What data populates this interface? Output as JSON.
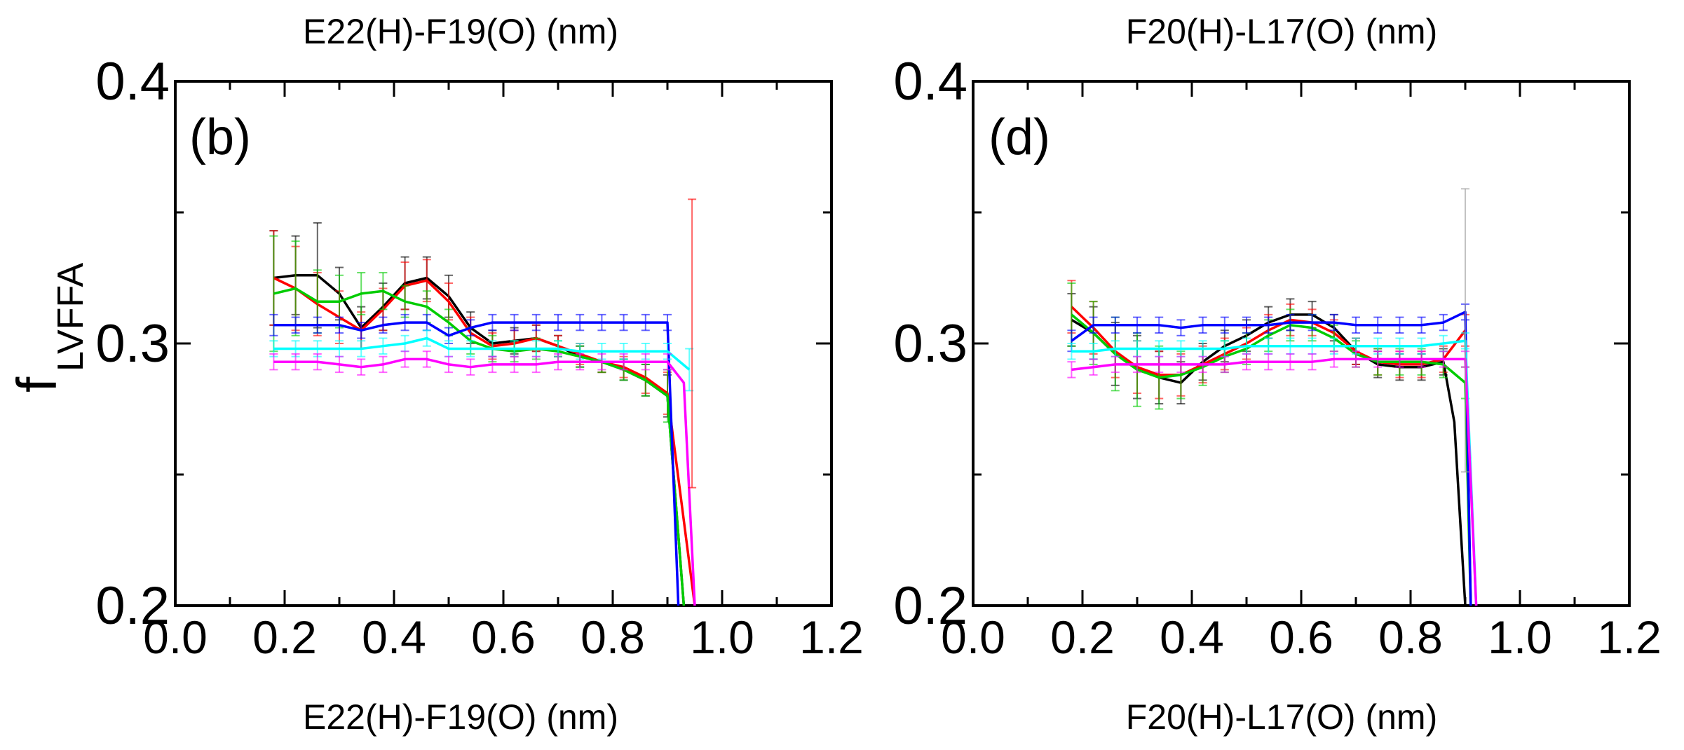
{
  "colors": {
    "black": "#000000",
    "red": "#ff0000",
    "green": "#00cc00",
    "blue": "#0000ff",
    "cyan": "#00ffff",
    "magenta": "#ff00ff"
  },
  "chart_data": [
    {
      "type": "line",
      "panel_label": "(b)",
      "top_label": "E22(H)-F19(O) (nm)",
      "xlabel": "E22(H)-F19(O) (nm)",
      "ylabel": "f",
      "ylabel_sub": "LVFFA",
      "xlim": [
        0.0,
        1.2
      ],
      "ylim": [
        0.2,
        0.4
      ],
      "x_ticks": [
        "0.0",
        "0.2",
        "0.4",
        "0.6",
        "0.8",
        "1.0",
        "1.2"
      ],
      "y_ticks": [
        "0.2",
        "0.3",
        "0.4"
      ],
      "grid": false,
      "series": [
        {
          "color": "black",
          "x": [
            0.18,
            0.22,
            0.26,
            0.3,
            0.34,
            0.38,
            0.42,
            0.46,
            0.5,
            0.54,
            0.58,
            0.62,
            0.66,
            0.7,
            0.74,
            0.78,
            0.82,
            0.86,
            0.9,
            0.93
          ],
          "y": [
            0.325,
            0.326,
            0.326,
            0.319,
            0.306,
            0.314,
            0.323,
            0.325,
            0.318,
            0.306,
            0.3,
            0.301,
            0.302,
            0.299,
            0.295,
            0.293,
            0.29,
            0.286,
            0.28,
            0.2
          ],
          "err": [
            0.018,
            0.015,
            0.02,
            0.01,
            0.008,
            0.009,
            0.01,
            0.008,
            0.008,
            0.006,
            0.005,
            0.005,
            0.005,
            0.004,
            0.004,
            0.004,
            0.004,
            0.006,
            0.008,
            0.0
          ]
        },
        {
          "color": "red",
          "x": [
            0.18,
            0.22,
            0.26,
            0.3,
            0.34,
            0.38,
            0.42,
            0.46,
            0.5,
            0.54,
            0.58,
            0.62,
            0.66,
            0.7,
            0.74,
            0.78,
            0.82,
            0.86,
            0.9,
            0.95
          ],
          "y": [
            0.325,
            0.321,
            0.315,
            0.31,
            0.305,
            0.313,
            0.322,
            0.324,
            0.316,
            0.304,
            0.299,
            0.3,
            0.302,
            0.299,
            0.296,
            0.293,
            0.291,
            0.287,
            0.281,
            0.2
          ],
          "err": [
            0.018,
            0.016,
            0.012,
            0.01,
            0.007,
            0.008,
            0.009,
            0.008,
            0.007,
            0.006,
            0.005,
            0.005,
            0.005,
            0.004,
            0.004,
            0.004,
            0.004,
            0.006,
            0.008,
            0.0
          ]
        },
        {
          "color": "green",
          "x": [
            0.18,
            0.22,
            0.26,
            0.3,
            0.34,
            0.38,
            0.42,
            0.46,
            0.5,
            0.54,
            0.58,
            0.62,
            0.66,
            0.7,
            0.74,
            0.78,
            0.82,
            0.86,
            0.9,
            0.93
          ],
          "y": [
            0.319,
            0.321,
            0.316,
            0.316,
            0.319,
            0.32,
            0.316,
            0.314,
            0.308,
            0.301,
            0.298,
            0.297,
            0.298,
            0.297,
            0.295,
            0.293,
            0.29,
            0.286,
            0.28,
            0.2
          ],
          "err": [
            0.022,
            0.018,
            0.012,
            0.01,
            0.008,
            0.007,
            0.006,
            0.006,
            0.005,
            0.005,
            0.005,
            0.004,
            0.004,
            0.004,
            0.004,
            0.004,
            0.004,
            0.006,
            0.01,
            0.0
          ]
        },
        {
          "color": "blue",
          "x": [
            0.18,
            0.22,
            0.26,
            0.3,
            0.34,
            0.38,
            0.42,
            0.46,
            0.5,
            0.54,
            0.58,
            0.62,
            0.66,
            0.7,
            0.74,
            0.78,
            0.82,
            0.86,
            0.9,
            0.92
          ],
          "y": [
            0.307,
            0.307,
            0.307,
            0.307,
            0.305,
            0.307,
            0.308,
            0.308,
            0.303,
            0.306,
            0.308,
            0.308,
            0.308,
            0.308,
            0.308,
            0.308,
            0.308,
            0.308,
            0.308,
            0.2
          ],
          "err": [
            0.004,
            0.003,
            0.003,
            0.003,
            0.003,
            0.003,
            0.003,
            0.003,
            0.003,
            0.003,
            0.003,
            0.003,
            0.003,
            0.003,
            0.003,
            0.003,
            0.003,
            0.003,
            0.003,
            0.0
          ]
        },
        {
          "color": "cyan",
          "x": [
            0.18,
            0.22,
            0.26,
            0.3,
            0.34,
            0.38,
            0.42,
            0.46,
            0.5,
            0.54,
            0.58,
            0.62,
            0.66,
            0.7,
            0.74,
            0.78,
            0.82,
            0.86,
            0.9,
            0.94
          ],
          "y": [
            0.298,
            0.298,
            0.298,
            0.298,
            0.298,
            0.299,
            0.3,
            0.302,
            0.298,
            0.298,
            0.298,
            0.298,
            0.298,
            0.298,
            0.297,
            0.297,
            0.297,
            0.297,
            0.297,
            0.29
          ],
          "err": [
            0.003,
            0.003,
            0.003,
            0.003,
            0.003,
            0.003,
            0.003,
            0.003,
            0.003,
            0.003,
            0.003,
            0.003,
            0.003,
            0.003,
            0.003,
            0.003,
            0.003,
            0.003,
            0.003,
            0.008
          ]
        },
        {
          "color": "magenta",
          "x": [
            0.18,
            0.22,
            0.26,
            0.3,
            0.34,
            0.38,
            0.42,
            0.46,
            0.5,
            0.54,
            0.58,
            0.62,
            0.66,
            0.7,
            0.74,
            0.78,
            0.82,
            0.86,
            0.9,
            0.93,
            0.95
          ],
          "y": [
            0.293,
            0.293,
            0.293,
            0.292,
            0.291,
            0.292,
            0.294,
            0.294,
            0.292,
            0.291,
            0.292,
            0.292,
            0.292,
            0.293,
            0.293,
            0.293,
            0.293,
            0.293,
            0.293,
            0.285,
            0.2
          ],
          "err": [
            0.003,
            0.003,
            0.003,
            0.003,
            0.003,
            0.003,
            0.003,
            0.003,
            0.003,
            0.003,
            0.003,
            0.003,
            0.003,
            0.003,
            0.003,
            0.003,
            0.003,
            0.003,
            0.003,
            0.0,
            0.0
          ]
        }
      ],
      "outlier_errorbars": [
        {
          "color": "red",
          "x": 0.945,
          "y": 0.3,
          "err": 0.055
        }
      ]
    },
    {
      "type": "line",
      "panel_label": "(d)",
      "top_label": "F20(H)-L17(O) (nm)",
      "xlabel": "F20(H)-L17(O) (nm)",
      "xlim": [
        0.0,
        1.2
      ],
      "ylim": [
        0.2,
        0.4
      ],
      "x_ticks": [
        "0.0",
        "0.2",
        "0.4",
        "0.6",
        "0.8",
        "1.0",
        "1.2"
      ],
      "y_ticks": [
        "0.2",
        "0.3",
        "0.4"
      ],
      "grid": false,
      "series": [
        {
          "color": "black",
          "x": [
            0.18,
            0.22,
            0.26,
            0.3,
            0.34,
            0.38,
            0.42,
            0.46,
            0.5,
            0.54,
            0.58,
            0.62,
            0.66,
            0.7,
            0.74,
            0.78,
            0.82,
            0.86,
            0.88,
            0.9
          ],
          "y": [
            0.309,
            0.304,
            0.296,
            0.291,
            0.287,
            0.285,
            0.293,
            0.299,
            0.303,
            0.308,
            0.311,
            0.311,
            0.306,
            0.297,
            0.292,
            0.291,
            0.291,
            0.293,
            0.27,
            0.2
          ],
          "err": [
            0.01,
            0.01,
            0.012,
            0.012,
            0.01,
            0.008,
            0.007,
            0.006,
            0.006,
            0.006,
            0.006,
            0.005,
            0.005,
            0.005,
            0.005,
            0.005,
            0.005,
            0.005,
            0.0,
            0.0
          ]
        },
        {
          "color": "red",
          "x": [
            0.18,
            0.22,
            0.26,
            0.3,
            0.34,
            0.38,
            0.42,
            0.46,
            0.5,
            0.54,
            0.58,
            0.62,
            0.66,
            0.7,
            0.74,
            0.78,
            0.82,
            0.86,
            0.9,
            0.91
          ],
          "y": [
            0.314,
            0.306,
            0.297,
            0.291,
            0.288,
            0.288,
            0.292,
            0.296,
            0.3,
            0.305,
            0.309,
            0.308,
            0.304,
            0.297,
            0.293,
            0.292,
            0.292,
            0.294,
            0.305,
            0.2
          ],
          "err": [
            0.01,
            0.01,
            0.01,
            0.01,
            0.009,
            0.008,
            0.007,
            0.006,
            0.006,
            0.006,
            0.006,
            0.005,
            0.005,
            0.005,
            0.005,
            0.005,
            0.005,
            0.005,
            0.006,
            0.0
          ]
        },
        {
          "color": "green",
          "x": [
            0.18,
            0.22,
            0.26,
            0.3,
            0.34,
            0.38,
            0.42,
            0.46,
            0.5,
            0.54,
            0.58,
            0.62,
            0.66,
            0.7,
            0.74,
            0.78,
            0.82,
            0.86,
            0.9,
            0.91
          ],
          "y": [
            0.311,
            0.304,
            0.296,
            0.29,
            0.287,
            0.288,
            0.291,
            0.295,
            0.298,
            0.303,
            0.307,
            0.306,
            0.302,
            0.296,
            0.293,
            0.293,
            0.293,
            0.292,
            0.285,
            0.2
          ],
          "err": [
            0.012,
            0.012,
            0.014,
            0.014,
            0.012,
            0.009,
            0.007,
            0.006,
            0.006,
            0.006,
            0.006,
            0.005,
            0.005,
            0.005,
            0.005,
            0.005,
            0.005,
            0.005,
            0.006,
            0.0
          ]
        },
        {
          "color": "blue",
          "x": [
            0.18,
            0.22,
            0.26,
            0.3,
            0.34,
            0.38,
            0.42,
            0.46,
            0.5,
            0.54,
            0.58,
            0.62,
            0.66,
            0.7,
            0.74,
            0.78,
            0.82,
            0.86,
            0.9,
            0.91
          ],
          "y": [
            0.301,
            0.307,
            0.307,
            0.307,
            0.307,
            0.306,
            0.307,
            0.307,
            0.307,
            0.307,
            0.308,
            0.308,
            0.308,
            0.307,
            0.307,
            0.307,
            0.307,
            0.308,
            0.312,
            0.2
          ],
          "err": [
            0.004,
            0.003,
            0.003,
            0.003,
            0.003,
            0.003,
            0.003,
            0.003,
            0.003,
            0.003,
            0.003,
            0.003,
            0.003,
            0.003,
            0.003,
            0.003,
            0.003,
            0.003,
            0.003,
            0.0
          ]
        },
        {
          "color": "cyan",
          "x": [
            0.18,
            0.22,
            0.26,
            0.3,
            0.34,
            0.38,
            0.42,
            0.46,
            0.5,
            0.54,
            0.58,
            0.62,
            0.66,
            0.7,
            0.74,
            0.78,
            0.82,
            0.86,
            0.9,
            0.92
          ],
          "y": [
            0.297,
            0.297,
            0.298,
            0.298,
            0.298,
            0.298,
            0.298,
            0.298,
            0.299,
            0.299,
            0.299,
            0.299,
            0.299,
            0.299,
            0.299,
            0.299,
            0.299,
            0.3,
            0.301,
            0.2
          ],
          "err": [
            0.003,
            0.003,
            0.003,
            0.003,
            0.003,
            0.003,
            0.003,
            0.003,
            0.003,
            0.003,
            0.003,
            0.003,
            0.003,
            0.003,
            0.003,
            0.003,
            0.003,
            0.003,
            0.003,
            0.0
          ]
        },
        {
          "color": "magenta",
          "x": [
            0.18,
            0.22,
            0.26,
            0.3,
            0.34,
            0.38,
            0.42,
            0.46,
            0.5,
            0.54,
            0.58,
            0.62,
            0.66,
            0.7,
            0.74,
            0.78,
            0.82,
            0.86,
            0.9,
            0.92
          ],
          "y": [
            0.29,
            0.291,
            0.292,
            0.292,
            0.292,
            0.292,
            0.292,
            0.292,
            0.293,
            0.293,
            0.293,
            0.293,
            0.294,
            0.294,
            0.294,
            0.294,
            0.294,
            0.294,
            0.294,
            0.2
          ],
          "err": [
            0.003,
            0.003,
            0.003,
            0.003,
            0.003,
            0.003,
            0.003,
            0.003,
            0.003,
            0.003,
            0.003,
            0.003,
            0.003,
            0.003,
            0.003,
            0.003,
            0.003,
            0.003,
            0.003,
            0.0
          ]
        }
      ],
      "outlier_errorbars": [
        {
          "color": "gray",
          "x": 0.9,
          "y": 0.305,
          "err": 0.054
        }
      ]
    }
  ]
}
